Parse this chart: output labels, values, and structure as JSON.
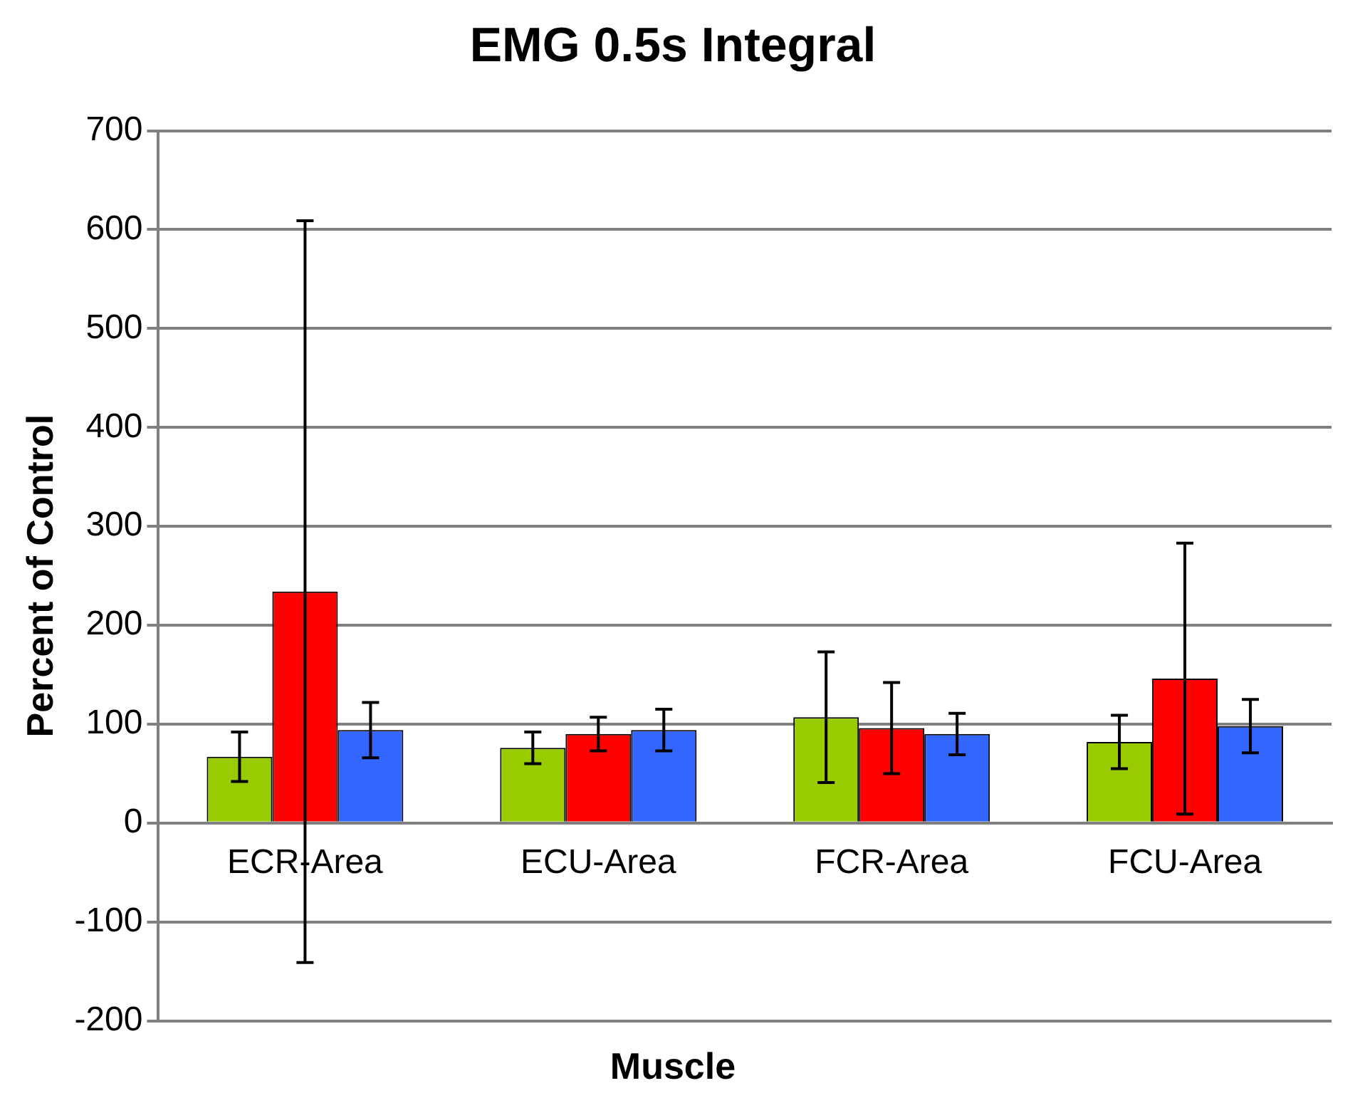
{
  "chart_data": {
    "type": "bar",
    "title": "EMG 0.5s Integral",
    "xlabel": "Muscle",
    "ylabel": "Percent of Control",
    "categories": [
      "ECR-Area",
      "ECU-Area",
      "FCR-Area",
      "FCU-Area"
    ],
    "series": [
      {
        "color": "#99cc00",
        "values": [
          67,
          76,
          107,
          82
        ],
        "errors": [
          25,
          16,
          66,
          27
        ]
      },
      {
        "color": "#ff0000",
        "values": [
          234,
          90,
          96,
          146
        ],
        "errors": [
          375,
          17,
          46,
          137
        ]
      },
      {
        "color": "#3366ff",
        "values": [
          94,
          94,
          90,
          98
        ],
        "errors": [
          28,
          21,
          21,
          27
        ]
      }
    ],
    "ylim": [
      -200,
      700
    ],
    "yticks": [
      -200,
      -100,
      0,
      100,
      200,
      300,
      400,
      500,
      600,
      700
    ],
    "grid": "y",
    "legend": false
  }
}
